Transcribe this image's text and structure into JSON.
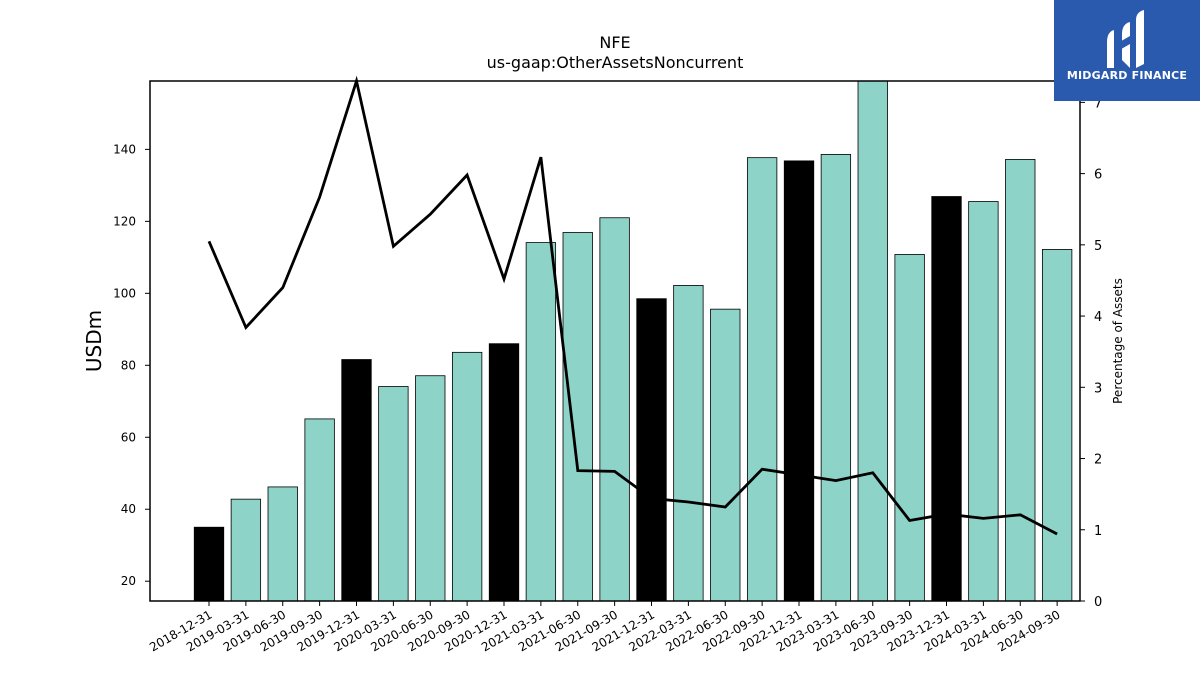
{
  "logo": {
    "brand": "MIDGARD FINANCE",
    "icon": "midgard-logo-icon"
  },
  "chart_data": {
    "type": "bar+line",
    "title": "NFE",
    "subtitle": "us-gaap:OtherAssetsNoncurrent",
    "ylabel_left": "USDm",
    "ylabel_right": "Percentage of Assets",
    "categories": [
      "2018-12-31",
      "2019-03-31",
      "2019-06-30",
      "2019-09-30",
      "2019-12-31",
      "2020-03-31",
      "2020-06-30",
      "2020-09-30",
      "2020-12-31",
      "2021-03-31",
      "2021-06-30",
      "2021-09-30",
      "2021-12-31",
      "2022-03-31",
      "2022-06-30",
      "2022-09-30",
      "2022-12-31",
      "2023-03-31",
      "2023-06-30",
      "2023-09-30",
      "2023-12-31",
      "2024-03-31",
      "2024-06-30",
      "2024-09-30"
    ],
    "bars": {
      "values": [
        35.0,
        42.8,
        46.2,
        65.1,
        81.6,
        74.1,
        77.1,
        83.6,
        86.0,
        114.1,
        116.9,
        121.0,
        98.5,
        102.2,
        95.6,
        137.7,
        136.8,
        138.6,
        160.0,
        110.8,
        126.9,
        125.5,
        137.2,
        112.2
      ],
      "year_end": [
        true,
        false,
        false,
        false,
        true,
        false,
        false,
        false,
        true,
        false,
        false,
        false,
        true,
        false,
        false,
        false,
        true,
        false,
        false,
        false,
        true,
        false,
        false,
        false
      ],
      "color_regular": "#8dd3c7",
      "color_year_end": "#000000"
    },
    "line": {
      "values": [
        5.05,
        3.84,
        4.4,
        5.67,
        7.3,
        4.98,
        5.43,
        5.98,
        4.52,
        6.23,
        1.83,
        1.82,
        1.44,
        1.39,
        1.32,
        1.85,
        1.77,
        1.69,
        1.8,
        1.13,
        1.22,
        1.16,
        1.21,
        0.94
      ],
      "color": "#000000"
    },
    "ylim_left": [
      14.5,
      159.0
    ],
    "yticks_left": [
      20,
      40,
      60,
      80,
      100,
      120,
      140
    ],
    "ylim_right": [
      0,
      7.3
    ],
    "yticks_right": [
      0,
      1,
      2,
      3,
      4,
      5,
      6,
      7
    ],
    "grid": false
  }
}
